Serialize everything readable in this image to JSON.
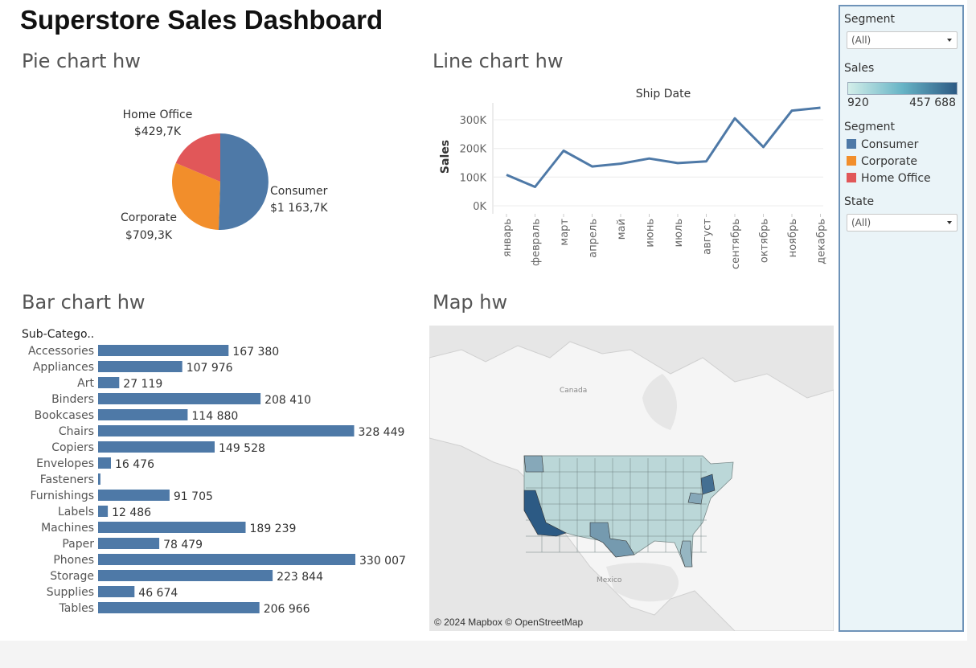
{
  "dashboard": {
    "title": "Superstore Sales Dashboard"
  },
  "colors": {
    "consumer": "#4e79a7",
    "corporate": "#f28e2b",
    "home_office": "#e15759",
    "bar": "#4e79a7",
    "line": "#4e79a7",
    "rail_border": "#6e93b8",
    "rail_bg": "#eaf4f8",
    "map_low": "#cfe8e4",
    "map_high": "#2c5a84"
  },
  "pie": {
    "title": "Pie chart hw",
    "labels": {
      "home_office_name": "Home Office",
      "home_office_value": "$429,7K",
      "consumer_name": "Consumer",
      "consumer_value": "$1 163,7K",
      "corporate_name": "Corporate",
      "corporate_value": "$709,3K"
    }
  },
  "line": {
    "title": "Line chart hw",
    "header": "Ship Date",
    "ylabel": "Sales",
    "y_ticks": [
      "0K",
      "100K",
      "200K",
      "300K"
    ]
  },
  "bar": {
    "title": "Bar chart hw",
    "column_header": "Sub-Catego.."
  },
  "map": {
    "title": "Map hw",
    "attribution": "© 2024 Mapbox © OpenStreetMap",
    "labels": {
      "canada": "Canada",
      "mexico": "Mexico"
    }
  },
  "filters": {
    "segment_title": "Segment",
    "segment_value": "(All)",
    "sales_title": "Sales",
    "sales_min": "920",
    "sales_max": "457 688",
    "legend_title": "Segment",
    "legend": [
      {
        "label": "Consumer",
        "color": "#4e79a7"
      },
      {
        "label": "Corporate",
        "color": "#f28e2b"
      },
      {
        "label": "Home Office",
        "color": "#e15759"
      }
    ],
    "state_title": "State",
    "state_value": "(All)"
  },
  "chart_data": [
    {
      "type": "pie",
      "title": "Pie chart hw",
      "categories": [
        "Consumer",
        "Corporate",
        "Home Office"
      ],
      "values": [
        1163.7,
        709.3,
        429.7
      ],
      "value_labels": [
        "$1 163,7K",
        "$709,3K",
        "$429,7K"
      ],
      "unit": "K$"
    },
    {
      "type": "line",
      "title": "Line chart hw",
      "header": "Ship Date",
      "ylabel": "Sales",
      "categories": [
        "январь",
        "февраль",
        "март",
        "апрель",
        "май",
        "июнь",
        "июль",
        "август",
        "сентябрь",
        "октябрь",
        "ноябрь",
        "декабрь"
      ],
      "values": [
        108000,
        66000,
        192000,
        137000,
        147000,
        165000,
        149000,
        155000,
        305000,
        205000,
        332000,
        342000
      ],
      "y_ticks": [
        0,
        100000,
        200000,
        300000
      ],
      "ylim": [
        0,
        350000
      ],
      "grid": true
    },
    {
      "type": "bar",
      "title": "Bar chart hw",
      "orientation": "horizontal",
      "category_header": "Sub-Catego..",
      "categories": [
        "Accessories",
        "Appliances",
        "Art",
        "Binders",
        "Bookcases",
        "Chairs",
        "Copiers",
        "Envelopes",
        "Fasteners",
        "Furnishings",
        "Labels",
        "Machines",
        "Paper",
        "Phones",
        "Storage",
        "Supplies",
        "Tables"
      ],
      "values": [
        167380,
        107976,
        27119,
        208410,
        114880,
        328449,
        149528,
        16476,
        3024,
        91705,
        12486,
        189239,
        78479,
        330007,
        223844,
        46674,
        206966
      ],
      "value_labels": [
        "167 380",
        "107 976",
        "27 119",
        "208 410",
        "114 880",
        "328 449",
        "149 528",
        "16 476",
        "",
        "91 705",
        "12 486",
        "189 239",
        "78 479",
        "330 007",
        "223 844",
        "46 674",
        "206 966"
      ]
    }
  ]
}
